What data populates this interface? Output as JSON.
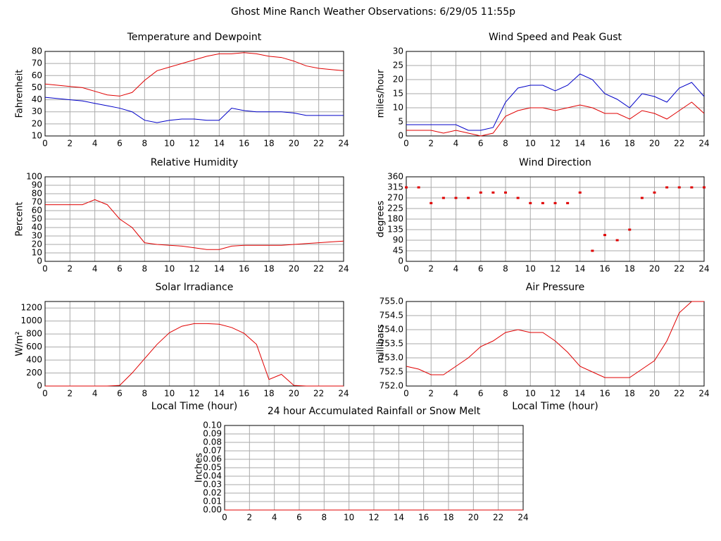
{
  "title": "Ghost Mine Ranch Weather Observations: 6/29/05 11:55p",
  "chart_data": [
    {
      "type": "line",
      "title": "Temperature and Dewpoint",
      "ylabel": "Fahrenheit",
      "x": [
        0,
        1,
        2,
        3,
        4,
        5,
        6,
        7,
        8,
        9,
        10,
        11,
        12,
        13,
        14,
        15,
        16,
        17,
        18,
        19,
        20,
        21,
        22,
        23,
        24
      ],
      "series": [
        {
          "color": "#e00000",
          "values": [
            53,
            52,
            51,
            50,
            47,
            44,
            43,
            46,
            56,
            64,
            67,
            70,
            73,
            76,
            78,
            78,
            79,
            78,
            76,
            75,
            72,
            68,
            66,
            65,
            64
          ]
        },
        {
          "color": "#0000c8",
          "values": [
            42,
            41,
            40,
            39,
            37,
            35,
            33,
            30,
            23,
            21,
            23,
            24,
            24,
            23,
            23,
            33,
            31,
            30,
            30,
            30,
            29,
            27,
            27,
            27,
            27
          ]
        }
      ],
      "xlim": [
        0,
        24
      ],
      "ylim": [
        10,
        80
      ],
      "xticks": [
        0,
        2,
        4,
        6,
        8,
        10,
        12,
        14,
        16,
        18,
        20,
        22,
        24
      ],
      "yticks": [
        10,
        20,
        30,
        40,
        50,
        60,
        70,
        80
      ],
      "grid": true
    },
    {
      "type": "line",
      "title": "Wind Speed and Peak Gust",
      "ylabel": "miles/hour",
      "x": [
        0,
        1,
        2,
        3,
        4,
        5,
        6,
        7,
        8,
        9,
        10,
        11,
        12,
        13,
        14,
        15,
        16,
        17,
        18,
        19,
        20,
        21,
        22,
        23,
        24
      ],
      "series": [
        {
          "color": "#0000c8",
          "values": [
            4,
            4,
            4,
            4,
            4,
            2,
            2,
            3,
            12,
            17,
            18,
            18,
            16,
            18,
            22,
            20,
            15,
            13,
            10,
            15,
            14,
            12,
            17,
            19,
            14
          ]
        },
        {
          "color": "#e00000",
          "values": [
            2,
            2,
            2,
            1,
            2,
            1,
            0,
            1,
            7,
            9,
            10,
            10,
            9,
            10,
            11,
            10,
            8,
            8,
            6,
            9,
            8,
            6,
            9,
            12,
            8
          ]
        }
      ],
      "xlim": [
        0,
        24
      ],
      "ylim": [
        0,
        30
      ],
      "xticks": [
        0,
        2,
        4,
        6,
        8,
        10,
        12,
        14,
        16,
        18,
        20,
        22,
        24
      ],
      "yticks": [
        0,
        5,
        10,
        15,
        20,
        25,
        30
      ],
      "grid": true
    },
    {
      "type": "line",
      "title": "Relative Humidity",
      "ylabel": "Percent",
      "x": [
        0,
        1,
        2,
        3,
        4,
        5,
        6,
        7,
        8,
        9,
        10,
        11,
        12,
        13,
        14,
        15,
        16,
        17,
        18,
        19,
        20,
        21,
        22,
        23,
        24
      ],
      "series": [
        {
          "color": "#e00000",
          "values": [
            67,
            67,
            67,
            67,
            73,
            67,
            50,
            40,
            22,
            20,
            19,
            18,
            16,
            14,
            14,
            18,
            19,
            19,
            19,
            19,
            20,
            21,
            22,
            23,
            24
          ]
        }
      ],
      "xlim": [
        0,
        24
      ],
      "ylim": [
        0,
        100
      ],
      "xticks": [
        0,
        2,
        4,
        6,
        8,
        10,
        12,
        14,
        16,
        18,
        20,
        22,
        24
      ],
      "yticks": [
        0,
        10,
        20,
        30,
        40,
        50,
        60,
        70,
        80,
        90,
        100
      ],
      "grid": true
    },
    {
      "type": "scatter",
      "title": "Wind Direction",
      "ylabel": "degrees",
      "x": [
        0,
        1,
        2,
        3,
        4,
        5,
        6,
        7,
        8,
        9,
        10,
        11,
        12,
        13,
        14,
        15,
        16,
        17,
        18,
        19,
        20,
        21,
        22,
        23,
        24
      ],
      "series": [
        {
          "color": "#e00000",
          "values": [
            315,
            315,
            248,
            270,
            270,
            270,
            293,
            293,
            293,
            270,
            248,
            248,
            248,
            248,
            293,
            45,
            112,
            90,
            135,
            270,
            293,
            315,
            315,
            315,
            315
          ]
        }
      ],
      "xlim": [
        0,
        24
      ],
      "ylim": [
        0,
        360
      ],
      "xticks": [
        0,
        2,
        4,
        6,
        8,
        10,
        12,
        14,
        16,
        18,
        20,
        22,
        24
      ],
      "yticks": [
        0,
        45,
        90,
        135,
        180,
        225,
        270,
        315,
        360
      ],
      "grid": true
    },
    {
      "type": "line",
      "title": "Solar Irradiance",
      "ylabel": "W/m²",
      "xlabel": "Local Time (hour)",
      "x": [
        0,
        1,
        2,
        3,
        4,
        5,
        6,
        7,
        8,
        9,
        10,
        11,
        12,
        13,
        14,
        15,
        16,
        17,
        18,
        19,
        20,
        21,
        22,
        23,
        24
      ],
      "series": [
        {
          "color": "#e00000",
          "values": [
            0,
            0,
            0,
            0,
            0,
            0,
            10,
            200,
            420,
            640,
            820,
            920,
            960,
            960,
            950,
            900,
            810,
            640,
            100,
            180,
            10,
            0,
            0,
            0,
            0
          ]
        }
      ],
      "xlim": [
        0,
        24
      ],
      "ylim": [
        0,
        1300
      ],
      "xticks": [
        0,
        2,
        4,
        6,
        8,
        10,
        12,
        14,
        16,
        18,
        20,
        22,
        24
      ],
      "yticks": [
        0,
        200,
        400,
        600,
        800,
        1000,
        1200
      ],
      "grid": true
    },
    {
      "type": "line",
      "title": "Air Pressure",
      "ylabel": "millibars",
      "xlabel": "Local Time (hour)",
      "x": [
        0,
        1,
        2,
        3,
        4,
        5,
        6,
        7,
        8,
        9,
        10,
        11,
        12,
        13,
        14,
        15,
        16,
        17,
        18,
        19,
        20,
        21,
        22,
        23,
        24
      ],
      "series": [
        {
          "color": "#e00000",
          "values": [
            752.7,
            752.6,
            752.4,
            752.4,
            752.7,
            753.0,
            753.4,
            753.6,
            753.9,
            754.0,
            753.9,
            753.9,
            753.6,
            753.2,
            752.7,
            752.5,
            752.3,
            752.3,
            752.3,
            752.6,
            752.9,
            753.6,
            754.6,
            755.0,
            755.0
          ]
        }
      ],
      "xlim": [
        0,
        24
      ],
      "ylim": [
        752,
        755
      ],
      "xticks": [
        0,
        2,
        4,
        6,
        8,
        10,
        12,
        14,
        16,
        18,
        20,
        22,
        24
      ],
      "yticks": [
        {
          "value": 752,
          "label": "752.0"
        },
        752.5,
        {
          "value": 753,
          "label": "753.0"
        },
        753.5,
        {
          "value": 754,
          "label": "754.0"
        },
        754.5,
        {
          "value": 755,
          "label": "755.0"
        }
      ],
      "grid": true
    },
    {
      "type": "line",
      "title": "24 hour Accumulated Rainfall or Snow Melt",
      "ylabel": "Inches",
      "x": [
        0,
        1,
        2,
        3,
        4,
        5,
        6,
        7,
        8,
        9,
        10,
        11,
        12,
        13,
        14,
        15,
        16,
        17,
        18,
        19,
        20,
        21,
        22,
        23,
        24
      ],
      "series": [
        {
          "color": "#e00000",
          "values": [
            0,
            0,
            0,
            0,
            0,
            0,
            0,
            0,
            0,
            0,
            0,
            0,
            0,
            0,
            0,
            0,
            0,
            0,
            0,
            0,
            0,
            0,
            0,
            0,
            0
          ]
        }
      ],
      "xlim": [
        0,
        24
      ],
      "ylim": [
        0,
        0.1
      ],
      "xticks": [
        0,
        2,
        4,
        6,
        8,
        10,
        12,
        14,
        16,
        18,
        20,
        22,
        24
      ],
      "yticks": [
        {
          "value": 0,
          "label": "0.00"
        },
        {
          "value": 0.01,
          "label": "0.01"
        },
        {
          "value": 0.02,
          "label": "0.02"
        },
        {
          "value": 0.03,
          "label": "0.03"
        },
        {
          "value": 0.04,
          "label": "0.04"
        },
        {
          "value": 0.05,
          "label": "0.05"
        },
        {
          "value": 0.06,
          "label": "0.06"
        },
        {
          "value": 0.07,
          "label": "0.07"
        },
        {
          "value": 0.08,
          "label": "0.08"
        },
        {
          "value": 0.09,
          "label": "0.09"
        },
        {
          "value": 0.1,
          "label": "0.10"
        }
      ],
      "grid": true
    }
  ]
}
